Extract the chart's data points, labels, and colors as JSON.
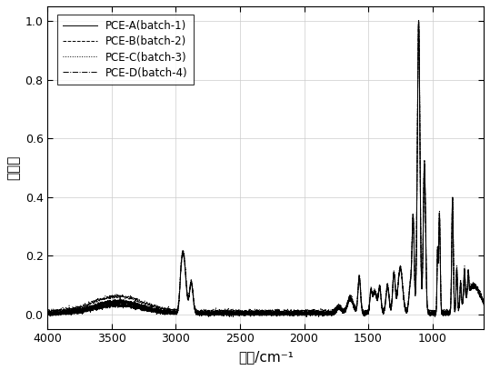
{
  "title": "",
  "xlabel": "波数/cm⁻¹",
  "ylabel": "吸光度",
  "xlim": [
    4000,
    600
  ],
  "ylim": [
    -0.05,
    1.05
  ],
  "yticks": [
    0.0,
    0.2,
    0.4,
    0.6,
    0.8,
    1.0
  ],
  "xticks": [
    4000,
    3500,
    3000,
    2500,
    2000,
    1500,
    1000
  ],
  "legend_labels": [
    "PCE-A(batch-1)",
    "PCE-B(batch-2)",
    "PCE-C(batch-3)",
    "PCE-D(batch-4)"
  ],
  "line_styles": [
    "-",
    "--",
    ":",
    "-."
  ],
  "line_color": "#000000",
  "background_color": "#ffffff",
  "figsize": [
    5.39,
    4.07
  ],
  "dpi": 100
}
